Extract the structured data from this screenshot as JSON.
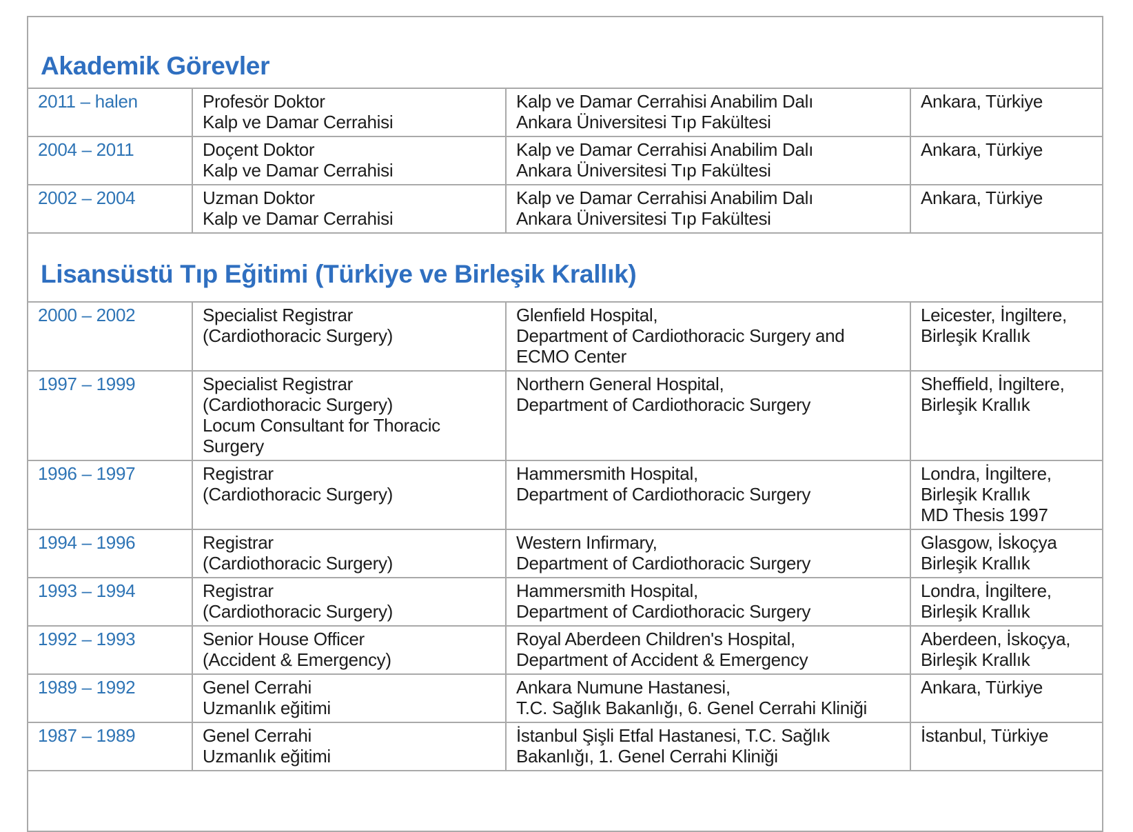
{
  "accent_colors": {
    "heading_blue": "#2f6fc0",
    "period_blue": "#2e74b5",
    "border_gray": "#a9a9a9",
    "body_text": "#1c1c1c"
  },
  "sections": [
    {
      "title": "Akademik Görevler",
      "rows": [
        {
          "period": "2011 – halen",
          "position": [
            "Profesör Doktor",
            "Kalp ve Damar Cerrahisi"
          ],
          "institution": [
            "Kalp ve Damar Cerrahisi Anabilim Dalı",
            "Ankara Üniversitesi Tıp Fakültesi"
          ],
          "location": [
            "Ankara, Türkiye"
          ]
        },
        {
          "period": "2004 – 2011",
          "position": [
            "Doçent Doktor",
            "Kalp ve Damar Cerrahisi"
          ],
          "institution": [
            "Kalp ve Damar Cerrahisi Anabilim Dalı",
            "Ankara Üniversitesi Tıp Fakültesi"
          ],
          "location": [
            "Ankara, Türkiye"
          ]
        },
        {
          "period": "2002 – 2004",
          "position": [
            "Uzman Doktor",
            "Kalp ve Damar Cerrahisi"
          ],
          "institution": [
            "Kalp ve Damar Cerrahisi Anabilim Dalı",
            "Ankara Üniversitesi Tıp Fakültesi"
          ],
          "location": [
            "Ankara, Türkiye"
          ]
        }
      ]
    },
    {
      "title": "Lisansüstü Tıp Eğitimi (Türkiye ve Birleşik Krallık)",
      "rows": [
        {
          "period": "2000 – 2002",
          "position": [
            "Specialist Registrar",
            "(Cardiothoracic Surgery)"
          ],
          "institution": [
            "Glenfield Hospital,",
            "Department of Cardiothoracic Surgery and",
            "ECMO Center"
          ],
          "location": [
            "Leicester, İngiltere,",
            "Birleşik Krallık"
          ]
        },
        {
          "period": "1997 – 1999",
          "position": [
            "Specialist Registrar",
            "(Cardiothoracic Surgery)",
            "Locum Consultant for Thoracic",
            "Surgery"
          ],
          "institution": [
            "Northern General Hospital,",
            "Department of Cardiothoracic Surgery"
          ],
          "location": [
            "Sheffield, İngiltere,",
            "Birleşik Krallık"
          ]
        },
        {
          "period": "1996 – 1997",
          "position": [
            "Registrar",
            "(Cardiothoracic Surgery)"
          ],
          "institution": [
            "Hammersmith Hospital,",
            "Department of Cardiothoracic Surgery"
          ],
          "location": [
            "Londra, İngiltere,",
            "Birleşik Krallık",
            "MD Thesis 1997"
          ]
        },
        {
          "period": "1994 – 1996",
          "position": [
            "Registrar",
            "(Cardiothoracic Surgery)"
          ],
          "institution": [
            "Western Infirmary,",
            "Department of Cardiothoracic Surgery"
          ],
          "location": [
            "Glasgow, İskoçya",
            "Birleşik Krallık"
          ]
        },
        {
          "period": "1993 – 1994",
          "position": [
            "Registrar",
            "(Cardiothoracic Surgery)"
          ],
          "institution": [
            "Hammersmith Hospital,",
            "Department of Cardiothoracic Surgery"
          ],
          "location": [
            "Londra, İngiltere,",
            "Birleşik Krallık"
          ]
        },
        {
          "period": "1992 – 1993",
          "position": [
            "Senior House Officer",
            "(Accident & Emergency)"
          ],
          "institution": [
            "Royal Aberdeen Children's Hospital,",
            "Department of Accident & Emergency"
          ],
          "location": [
            "Aberdeen, İskoçya,",
            "Birleşik Krallık"
          ]
        },
        {
          "period": "1989 – 1992",
          "position": [
            "Genel Cerrahi",
            "Uzmanlık eğitimi"
          ],
          "institution": [
            "Ankara Numune Hastanesi,",
            "T.C. Sağlık Bakanlığı, 6. Genel Cerrahi Kliniği"
          ],
          "location": [
            "Ankara, Türkiye"
          ]
        },
        {
          "period": "1987 – 1989",
          "position": [
            "Genel Cerrahi",
            "Uzmanlık eğitimi"
          ],
          "institution": [
            "İstanbul Şişli Etfal Hastanesi, T.C. Sağlık",
            "Bakanlığı, 1. Genel Cerrahi Kliniği"
          ],
          "location": [
            "İstanbul, Türkiye"
          ]
        }
      ]
    }
  ]
}
